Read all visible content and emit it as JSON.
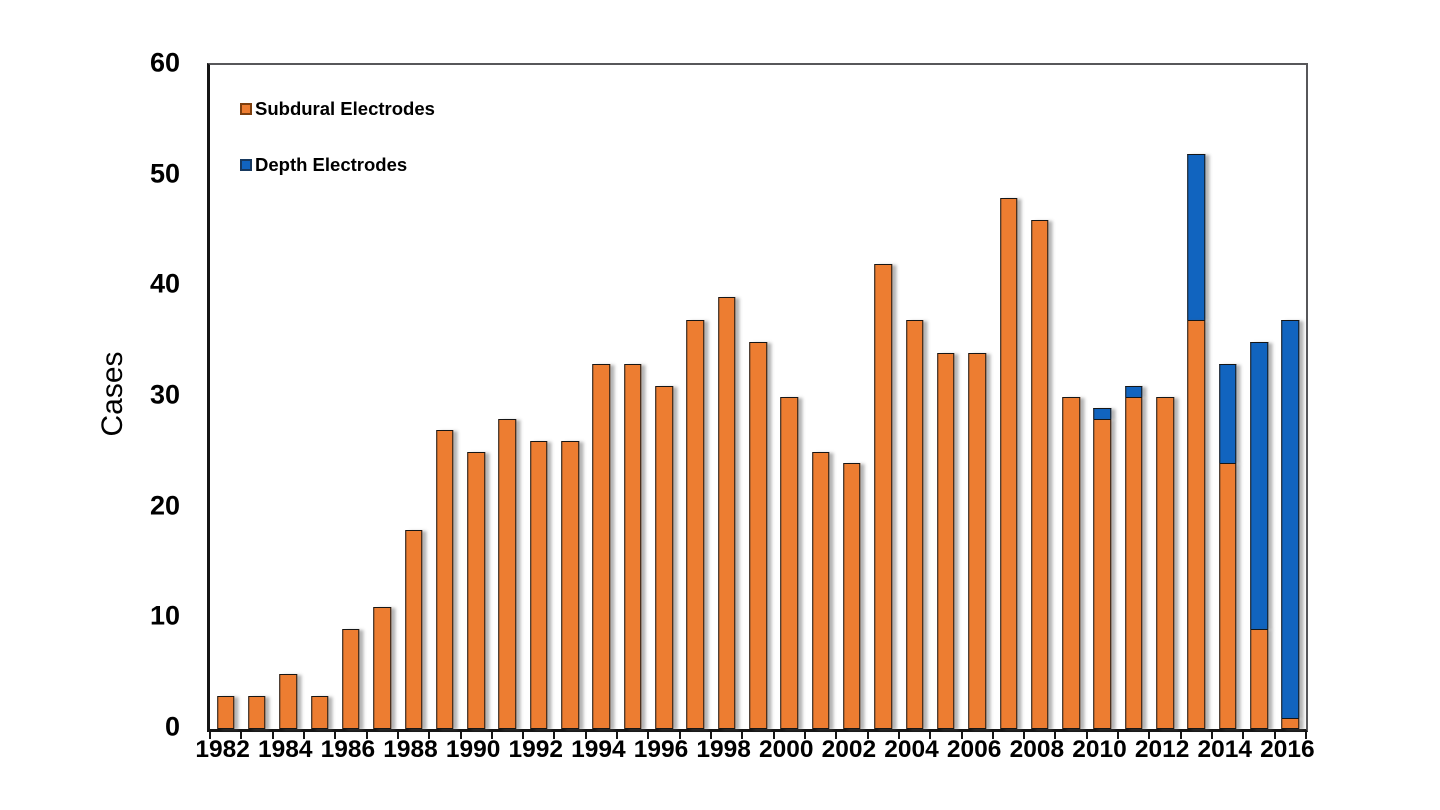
{
  "chart_data": {
    "type": "bar",
    "stacked": true,
    "title": "",
    "xlabel": "",
    "ylabel": "Cases",
    "ylim": [
      0,
      60
    ],
    "yticks": [
      0,
      10,
      20,
      30,
      40,
      50,
      60
    ],
    "grid": false,
    "legend_position": "top-left-inside",
    "categories": [
      1982,
      1983,
      1984,
      1985,
      1986,
      1987,
      1988,
      1989,
      1990,
      1991,
      1992,
      1993,
      1994,
      1995,
      1996,
      1997,
      1998,
      1999,
      2000,
      2001,
      2002,
      2003,
      2004,
      2005,
      2006,
      2007,
      2008,
      2009,
      2010,
      2011,
      2012,
      2013,
      2014,
      2015,
      2016
    ],
    "x_label_every": 2,
    "series": [
      {
        "name": "Subdural Electrodes",
        "color": "#ED7D31",
        "values": [
          3,
          3,
          5,
          3,
          9,
          11,
          18,
          27,
          25,
          28,
          26,
          26,
          33,
          33,
          31,
          37,
          39,
          35,
          30,
          25,
          24,
          42,
          37,
          34,
          34,
          48,
          46,
          30,
          28,
          30,
          30,
          37,
          24,
          9,
          1
        ]
      },
      {
        "name": "Depth Electrodes",
        "color": "#1164BF",
        "values": [
          0,
          0,
          0,
          0,
          0,
          0,
          0,
          0,
          0,
          0,
          0,
          0,
          0,
          0,
          0,
          0,
          0,
          0,
          0,
          0,
          0,
          0,
          0,
          0,
          0,
          0,
          0,
          0,
          1,
          1,
          0,
          15,
          9,
          26,
          36
        ]
      }
    ]
  },
  "legend": {
    "items": [
      {
        "label": "Subdural Electrodes",
        "color": "#ED7D31"
      },
      {
        "label": "Depth Electrodes",
        "color": "#1164BF"
      }
    ]
  }
}
